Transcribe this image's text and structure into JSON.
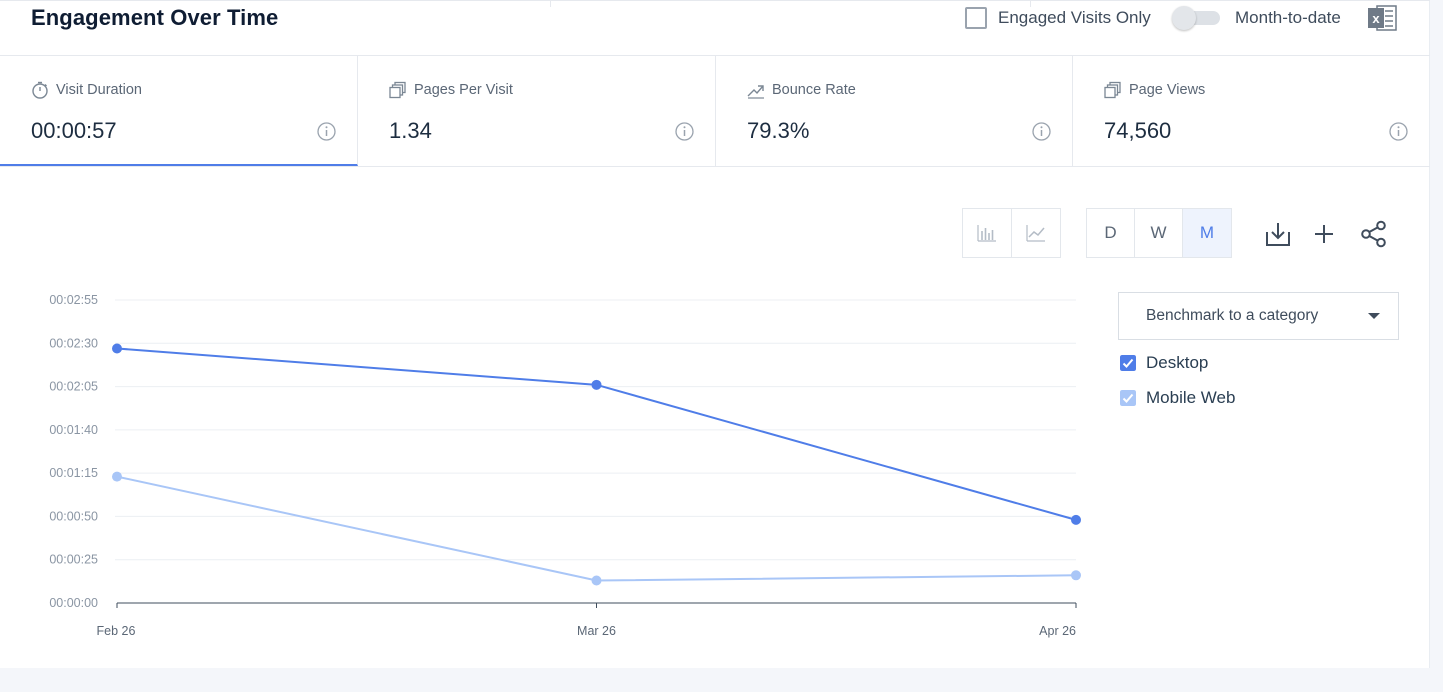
{
  "header": {
    "title": "Engagement Over Time",
    "engaged_visits_label": "Engaged Visits Only",
    "month_to_date_label": "Month-to-date",
    "engaged_visits_checked": false,
    "month_to_date_on": false
  },
  "metrics": [
    {
      "label": "Visit Duration",
      "value": "00:00:57",
      "icon": "stopwatch-icon",
      "active": true
    },
    {
      "label": "Pages Per Visit",
      "value": "1.34",
      "icon": "pages-icon",
      "active": false
    },
    {
      "label": "Bounce Rate",
      "value": "79.3%",
      "icon": "bounce-icon",
      "active": false
    },
    {
      "label": "Page Views",
      "value": "74,560",
      "icon": "pages-icon",
      "active": false
    }
  ],
  "toolbar": {
    "chart_types": [
      "bar-chart-icon",
      "line-chart-icon"
    ],
    "granularity": [
      "D",
      "W",
      "M"
    ],
    "granularity_selected": "M",
    "actions": [
      "download-icon",
      "add-icon",
      "share-icon"
    ]
  },
  "benchmark": {
    "label": "Benchmark to a category"
  },
  "legend": [
    {
      "name": "Desktop",
      "color": "#4f7de8",
      "checked": true
    },
    {
      "name": "Mobile Web",
      "color": "#a9c6f7",
      "checked": true
    }
  ],
  "chart_data": {
    "type": "line",
    "x": [
      "Feb 26",
      "Mar 26",
      "Apr 26"
    ],
    "y_ticks": [
      "00:00:00",
      "00:00:25",
      "00:00:50",
      "00:01:15",
      "00:01:40",
      "00:02:05",
      "00:02:30",
      "00:02:55"
    ],
    "ylim_seconds": [
      0,
      175
    ],
    "grid": true,
    "series": [
      {
        "name": "Desktop",
        "color": "#4f7de8",
        "values_seconds": [
          147,
          126,
          48
        ]
      },
      {
        "name": "Mobile Web",
        "color": "#a9c6f7",
        "values_seconds": [
          73,
          13,
          16
        ]
      }
    ]
  }
}
